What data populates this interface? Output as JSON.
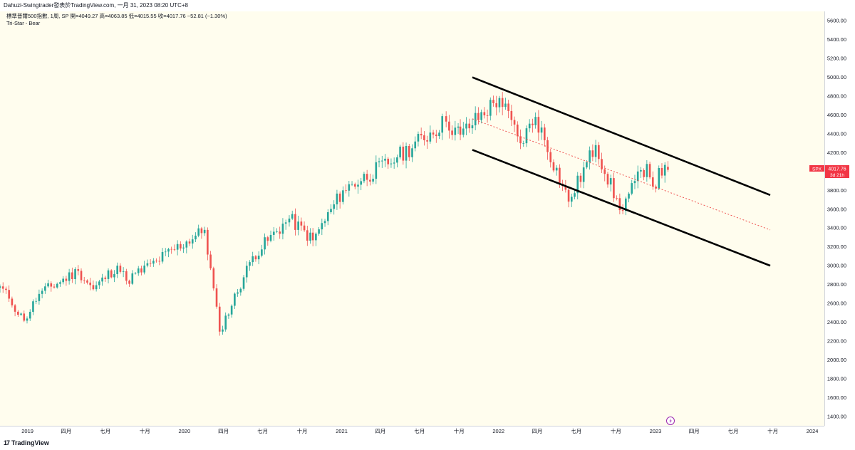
{
  "header": {
    "publish_line": "Dahuzi-Swingtrader發表於TradingView.com, 一月 31, 2023 08:20 UTC+8"
  },
  "legend": {
    "symbol_line": "標準普爾500指數, 1周, SP  開=4049.27  高=4063.85  低=4015.55  收=4017.76  −52.81 (−1.30%)",
    "indicator_line": "Tri-Star - Bear"
  },
  "price_label": {
    "symbol": "SPX",
    "price": "4017.76",
    "countdown": "3d 21h",
    "color": "#f23645"
  },
  "footer": {
    "brand": "TradingView",
    "logo_glyph": "17"
  },
  "colors": {
    "background": "#fffdee",
    "up_candle": "#26a69a",
    "down_candle": "#ef5350",
    "channel_line": "#000000",
    "midline": "#ef5350"
  },
  "chart_data": {
    "type": "candlestick",
    "timeframe": "1 week",
    "y_axis": {
      "ticks": [
        1400,
        1600,
        1800,
        2000,
        2200,
        2400,
        2600,
        2800,
        3000,
        3200,
        3400,
        3600,
        3800,
        4000,
        4200,
        4400,
        4600,
        4800,
        5000,
        5200,
        5400,
        5600
      ],
      "tick_labels": [
        "1400.00",
        "1600.00",
        "1800.00",
        "2000.00",
        "2200.00",
        "2400.00",
        "2600.00",
        "2800.00",
        "3000.00",
        "3200.00",
        "3400.00",
        "3600.00",
        "3800.00",
        "4000.00",
        "4200.00",
        "4400.00",
        "4600.00",
        "4800.00",
        "5000.00",
        "5200.00",
        "5400.00",
        "5600.00"
      ],
      "range": [
        1300,
        5700
      ],
      "position": "right"
    },
    "x_axis": {
      "range": [
        "2018-10-29",
        "2024-01-29"
      ],
      "ticks": [
        {
          "date": "2019-01-01",
          "label": "2019"
        },
        {
          "date": "2019-04-01",
          "label": "四月"
        },
        {
          "date": "2019-07-01",
          "label": "七月"
        },
        {
          "date": "2019-10-01",
          "label": "十月"
        },
        {
          "date": "2020-01-01",
          "label": "2020"
        },
        {
          "date": "2020-04-01",
          "label": "四月"
        },
        {
          "date": "2020-07-01",
          "label": "七月"
        },
        {
          "date": "2020-10-01",
          "label": "十月"
        },
        {
          "date": "2021-01-01",
          "label": "2021"
        },
        {
          "date": "2021-04-01",
          "label": "四月"
        },
        {
          "date": "2021-07-01",
          "label": "七月"
        },
        {
          "date": "2021-10-01",
          "label": "十月"
        },
        {
          "date": "2022-01-01",
          "label": "2022"
        },
        {
          "date": "2022-04-01",
          "label": "四月"
        },
        {
          "date": "2022-07-01",
          "label": "七月"
        },
        {
          "date": "2022-10-01",
          "label": "十月"
        },
        {
          "date": "2023-01-01",
          "label": "2023"
        },
        {
          "date": "2023-04-01",
          "label": "四月"
        },
        {
          "date": "2023-07-01",
          "label": "七月"
        },
        {
          "date": "2023-10-01",
          "label": "十月"
        },
        {
          "date": "2024-01-01",
          "label": "2024"
        }
      ]
    },
    "anchors": [
      {
        "date": "2018-10-29",
        "close": 2780
      },
      {
        "date": "2018-11-19",
        "close": 2650
      },
      {
        "date": "2018-12-24",
        "close": 2416
      },
      {
        "date": "2019-01-28",
        "close": 2700
      },
      {
        "date": "2019-04-29",
        "close": 2945
      },
      {
        "date": "2019-06-03",
        "close": 2750
      },
      {
        "date": "2019-07-29",
        "close": 3000
      },
      {
        "date": "2019-08-19",
        "close": 2840
      },
      {
        "date": "2019-10-28",
        "close": 3050
      },
      {
        "date": "2020-02-17",
        "close": 3380
      },
      {
        "date": "2020-03-23",
        "close": 2300
      },
      {
        "date": "2020-06-08",
        "close": 3100
      },
      {
        "date": "2020-09-01",
        "close": 3500
      },
      {
        "date": "2020-10-26",
        "close": 3270
      },
      {
        "date": "2021-01-04",
        "close": 3800
      },
      {
        "date": "2021-05-10",
        "close": 4150
      },
      {
        "date": "2021-09-01",
        "close": 4530
      },
      {
        "date": "2021-10-04",
        "close": 4390
      },
      {
        "date": "2022-01-03",
        "close": 4780
      },
      {
        "date": "2022-02-21",
        "close": 4300
      },
      {
        "date": "2022-03-28",
        "close": 4580
      },
      {
        "date": "2022-06-13",
        "close": 3680
      },
      {
        "date": "2022-08-15",
        "close": 4280
      },
      {
        "date": "2022-10-10",
        "close": 3590
      },
      {
        "date": "2022-12-12",
        "close": 4080
      },
      {
        "date": "2022-12-26",
        "close": 3840
      },
      {
        "date": "2023-01-23",
        "close": 4070
      },
      {
        "date": "2023-01-30",
        "close": 4017.76
      }
    ],
    "channel_upper": [
      [
        "2021-11-01",
        5000
      ],
      [
        "2023-09-25",
        3750
      ]
    ],
    "channel_lower": [
      [
        "2021-11-01",
        4230
      ],
      [
        "2023-09-25",
        3000
      ]
    ],
    "channel_mid": [
      [
        "2021-11-01",
        4560
      ],
      [
        "2023-09-25",
        3380
      ]
    ]
  }
}
